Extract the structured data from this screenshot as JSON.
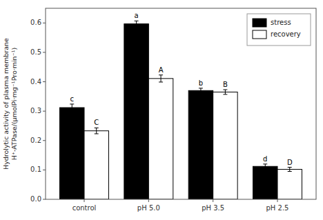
{
  "chart_data": {
    "type": "bar",
    "categories": [
      "control",
      "pH 5.0",
      "pH 3.5",
      "pH 2.5"
    ],
    "series": [
      {
        "name": "stress",
        "color": "#000000",
        "values": [
          0.312,
          0.597,
          0.37,
          0.112
        ],
        "errors": [
          0.012,
          0.01,
          0.008,
          0.008
        ],
        "letters": [
          "c",
          "a",
          "b",
          "d"
        ]
      },
      {
        "name": "recovery",
        "color": "#ffffff",
        "values": [
          0.233,
          0.411,
          0.365,
          0.102
        ],
        "errors": [
          0.01,
          0.012,
          0.008,
          0.007
        ],
        "letters": [
          "C",
          "A",
          "B",
          "D"
        ]
      }
    ],
    "ylabel": "Hydrolytic activity of plasma membrane\nH⁺-ATPase/(μmolPi·mg⁻¹Pro·min⁻¹)",
    "ylim": [
      0.0,
      0.65
    ],
    "yticks": [
      {
        "value": 0.0,
        "label": "0.0"
      },
      0.1,
      0.2,
      0.3,
      0.4,
      0.5,
      0.6
    ],
    "legend": "upper right"
  }
}
